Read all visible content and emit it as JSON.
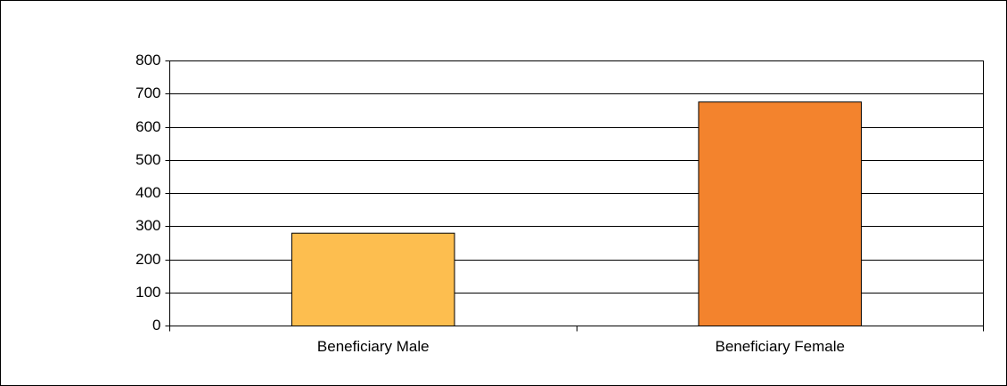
{
  "chart_data": {
    "type": "bar",
    "categories": [
      "Beneficiary Male",
      "Beneficiary Female"
    ],
    "values": [
      280,
      676
    ],
    "colors": [
      "#fdbe4f",
      "#f3832d"
    ],
    "ylim": [
      0,
      800
    ],
    "yticks": [
      0,
      100,
      200,
      300,
      400,
      500,
      600,
      700,
      800
    ],
    "grid": true
  }
}
